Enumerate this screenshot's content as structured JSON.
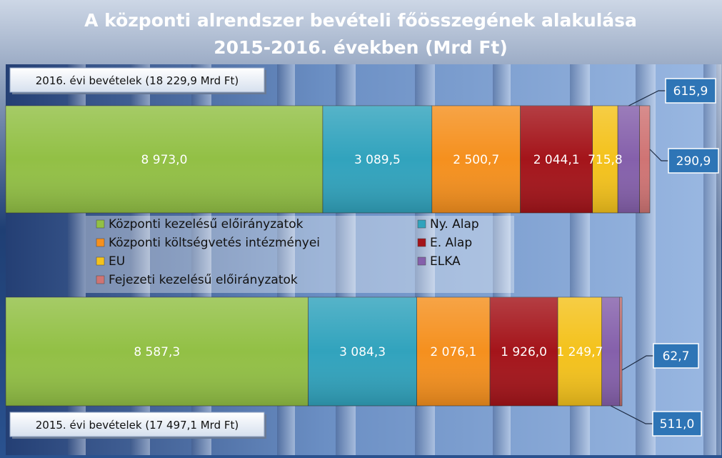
{
  "chart_data": {
    "type": "bar",
    "orientation": "horizontal",
    "stacked": true,
    "title": [
      "A központi alrendszer bevételi főösszegének alakulása",
      "2015-2016. években (Mrd Ft)"
    ],
    "categories": [
      "2016",
      "2015"
    ],
    "category_labels": [
      "2016. évi bevételek (18 229,9 Mrd Ft)",
      "2015. évi bevételek (17 497,1 Mrd Ft)"
    ],
    "series": [
      {
        "name": "Központi kezelésű előirányzatok",
        "color": "#92c045",
        "values": [
          8973.0,
          8587.3
        ],
        "labels": [
          "8 973,0",
          "8 587,3"
        ]
      },
      {
        "name": "Ny. Alap",
        "color": "#31a3bd",
        "values": [
          3089.5,
          3084.3
        ],
        "labels": [
          "3 089,5",
          "3 084,3"
        ]
      },
      {
        "name": "Központi költségvetés intézményei",
        "color": "#f5901e",
        "values": [
          2500.7,
          2076.1
        ],
        "labels": [
          "2 500,7",
          "2 076,1"
        ]
      },
      {
        "name": "E. Alap",
        "color": "#a4141a",
        "values": [
          2044.1,
          1926.0
        ],
        "labels": [
          "2 044,1",
          "1 926,0"
        ]
      },
      {
        "name": "EU",
        "color": "#f4c21c",
        "values": [
          715.8,
          1249.7
        ],
        "labels": [
          "715,8",
          "1 249,7"
        ]
      },
      {
        "name": "ELKA",
        "color": "#8560ab",
        "values": [
          615.9,
          511.0
        ],
        "labels": [
          "615,9",
          "511,0"
        ]
      },
      {
        "name": "Fejezeti kezelésű előirányzatok",
        "color": "#cf7474",
        "values": [
          290.9,
          62.7
        ],
        "labels": [
          "290,9",
          "62,7"
        ]
      }
    ],
    "legend_order": [
      0,
      1,
      2,
      3,
      4,
      5,
      6
    ],
    "legend_position": "between bars"
  }
}
